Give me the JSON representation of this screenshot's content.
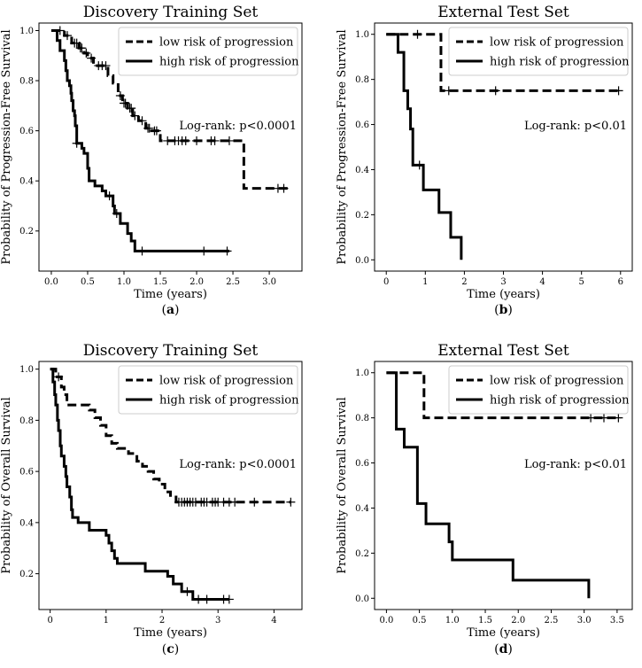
{
  "chart_data": [
    {
      "type": "line",
      "panel_label": "a",
      "title": "Discovery Training Set",
      "xlabel": "Time (years)",
      "ylabel": "Probability of Progression-Free Survival",
      "xlim": [
        -0.17,
        3.45
      ],
      "ylim": [
        0.04,
        1.03
      ],
      "xticks": [
        "0.0",
        "0.5",
        "1.0",
        "1.5",
        "2.0",
        "2.5",
        "3.0"
      ],
      "xtick_values": [
        0,
        0.5,
        1,
        1.5,
        2,
        2.5,
        3
      ],
      "yticks": [
        "0.2",
        "0.4",
        "0.6",
        "0.8",
        "1.0"
      ],
      "ytick_values": [
        0.2,
        0.4,
        0.6,
        0.8,
        1.0
      ],
      "annotation": "Log-rank: p<0.0001",
      "legend_position": "top-right",
      "series": [
        {
          "name": "low risk of progression",
          "style": "dashed",
          "steps": [
            [
              0,
              1.0
            ],
            [
              0.18,
              0.98
            ],
            [
              0.28,
              0.95
            ],
            [
              0.38,
              0.93
            ],
            [
              0.45,
              0.91
            ],
            [
              0.5,
              0.89
            ],
            [
              0.58,
              0.86
            ],
            [
              0.78,
              0.82
            ],
            [
              0.85,
              0.79
            ],
            [
              0.92,
              0.74
            ],
            [
              0.98,
              0.71
            ],
            [
              1.05,
              0.69
            ],
            [
              1.12,
              0.66
            ],
            [
              1.2,
              0.64
            ],
            [
              1.3,
              0.61
            ],
            [
              1.38,
              0.6
            ],
            [
              1.5,
              0.56
            ],
            [
              2.65,
              0.37
            ],
            [
              3.3,
              0.37
            ]
          ],
          "censored": [
            [
              0.12,
              1.0
            ],
            [
              0.22,
              0.98
            ],
            [
              0.32,
              0.95
            ],
            [
              0.35,
              0.95
            ],
            [
              0.4,
              0.93
            ],
            [
              0.42,
              0.93
            ],
            [
              0.48,
              0.91
            ],
            [
              0.55,
              0.89
            ],
            [
              0.65,
              0.86
            ],
            [
              0.7,
              0.86
            ],
            [
              0.75,
              0.86
            ],
            [
              0.95,
              0.74
            ],
            [
              1.0,
              0.71
            ],
            [
              1.02,
              0.71
            ],
            [
              1.08,
              0.69
            ],
            [
              1.1,
              0.69
            ],
            [
              1.15,
              0.66
            ],
            [
              1.25,
              0.64
            ],
            [
              1.33,
              0.61
            ],
            [
              1.35,
              0.61
            ],
            [
              1.42,
              0.6
            ],
            [
              1.45,
              0.6
            ],
            [
              1.6,
              0.56
            ],
            [
              1.7,
              0.56
            ],
            [
              1.75,
              0.56
            ],
            [
              1.8,
              0.56
            ],
            [
              1.85,
              0.56
            ],
            [
              2.0,
              0.56
            ],
            [
              2.2,
              0.56
            ],
            [
              2.25,
              0.56
            ],
            [
              2.45,
              0.56
            ],
            [
              3.12,
              0.37
            ],
            [
              3.2,
              0.37
            ]
          ]
        },
        {
          "name": "high risk of progression",
          "style": "solid",
          "steps": [
            [
              0,
              1.0
            ],
            [
              0.08,
              0.96
            ],
            [
              0.12,
              0.92
            ],
            [
              0.18,
              0.88
            ],
            [
              0.2,
              0.84
            ],
            [
              0.22,
              0.8
            ],
            [
              0.25,
              0.78
            ],
            [
              0.27,
              0.75
            ],
            [
              0.28,
              0.72
            ],
            [
              0.3,
              0.68
            ],
            [
              0.32,
              0.66
            ],
            [
              0.33,
              0.62
            ],
            [
              0.35,
              0.55
            ],
            [
              0.42,
              0.53
            ],
            [
              0.45,
              0.51
            ],
            [
              0.5,
              0.45
            ],
            [
              0.52,
              0.4
            ],
            [
              0.6,
              0.38
            ],
            [
              0.7,
              0.36
            ],
            [
              0.75,
              0.34
            ],
            [
              0.85,
              0.3
            ],
            [
              0.87,
              0.27
            ],
            [
              0.95,
              0.23
            ],
            [
              1.05,
              0.19
            ],
            [
              1.1,
              0.16
            ],
            [
              1.15,
              0.12
            ],
            [
              2.45,
              0.12
            ]
          ],
          "censored": [
            [
              0.35,
              0.55
            ],
            [
              0.8,
              0.34
            ],
            [
              0.9,
              0.27
            ],
            [
              1.25,
              0.12
            ],
            [
              2.1,
              0.12
            ],
            [
              2.42,
              0.12
            ]
          ]
        }
      ]
    },
    {
      "type": "line",
      "panel_label": "b",
      "title": "External Test Set",
      "xlabel": "Time (years)",
      "ylabel": "Probability of Progression-Free Survival",
      "xlim": [
        -0.3,
        6.3
      ],
      "ylim": [
        -0.05,
        1.05
      ],
      "xticks": [
        "0",
        "1",
        "2",
        "3",
        "4",
        "5",
        "6"
      ],
      "xtick_values": [
        0,
        1,
        2,
        3,
        4,
        5,
        6
      ],
      "yticks": [
        "0.0",
        "0.2",
        "0.4",
        "0.6",
        "0.8",
        "1.0"
      ],
      "ytick_values": [
        0,
        0.2,
        0.4,
        0.6,
        0.8,
        1.0
      ],
      "annotation": "Log-rank: p<0.01",
      "legend_position": "top-right",
      "series": [
        {
          "name": "low risk of progression",
          "style": "dashed",
          "steps": [
            [
              0,
              1.0
            ],
            [
              1.4,
              0.75
            ],
            [
              6.0,
              0.75
            ]
          ],
          "censored": [
            [
              0.8,
              1.0
            ],
            [
              1.6,
              0.75
            ],
            [
              2.8,
              0.75
            ],
            [
              5.95,
              0.75
            ]
          ]
        },
        {
          "name": "high risk of progression",
          "style": "solid",
          "steps": [
            [
              0,
              1.0
            ],
            [
              0.3,
              0.92
            ],
            [
              0.45,
              0.75
            ],
            [
              0.55,
              0.67
            ],
            [
              0.62,
              0.58
            ],
            [
              0.68,
              0.42
            ],
            [
              0.95,
              0.31
            ],
            [
              1.35,
              0.21
            ],
            [
              1.65,
              0.1
            ],
            [
              1.92,
              0.0
            ]
          ],
          "censored": [
            [
              0.85,
              0.42
            ]
          ]
        }
      ]
    },
    {
      "type": "line",
      "panel_label": "c",
      "title": "Discovery Training Set",
      "xlabel": "Time (years)",
      "ylabel": "Probability of Overall Survival",
      "xlim": [
        -0.2,
        4.5
      ],
      "ylim": [
        0.06,
        1.03
      ],
      "xticks": [
        "0",
        "1",
        "2",
        "3",
        "4"
      ],
      "xtick_values": [
        0,
        1,
        2,
        3,
        4
      ],
      "yticks": [
        "0.2",
        "0.4",
        "0.6",
        "0.8",
        "1.0"
      ],
      "ytick_values": [
        0.2,
        0.4,
        0.6,
        0.8,
        1.0
      ],
      "annotation": "Log-rank: p<0.0001",
      "legend_position": "top-right",
      "series": [
        {
          "name": "low risk of progression",
          "style": "dashed",
          "steps": [
            [
              0,
              1.0
            ],
            [
              0.1,
              0.97
            ],
            [
              0.2,
              0.93
            ],
            [
              0.25,
              0.9
            ],
            [
              0.3,
              0.86
            ],
            [
              0.7,
              0.84
            ],
            [
              0.8,
              0.81
            ],
            [
              0.9,
              0.78
            ],
            [
              1.0,
              0.74
            ],
            [
              1.1,
              0.71
            ],
            [
              1.2,
              0.69
            ],
            [
              1.4,
              0.67
            ],
            [
              1.55,
              0.64
            ],
            [
              1.65,
              0.62
            ],
            [
              1.75,
              0.6
            ],
            [
              1.85,
              0.57
            ],
            [
              1.95,
              0.55
            ],
            [
              2.05,
              0.52
            ],
            [
              2.15,
              0.5
            ],
            [
              2.25,
              0.48
            ],
            [
              4.3,
              0.48
            ]
          ],
          "censored": [
            [
              0.15,
              0.97
            ],
            [
              2.3,
              0.48
            ],
            [
              2.35,
              0.48
            ],
            [
              2.4,
              0.48
            ],
            [
              2.45,
              0.48
            ],
            [
              2.5,
              0.48
            ],
            [
              2.55,
              0.48
            ],
            [
              2.6,
              0.48
            ],
            [
              2.7,
              0.48
            ],
            [
              2.75,
              0.48
            ],
            [
              2.8,
              0.48
            ],
            [
              2.9,
              0.48
            ],
            [
              2.95,
              0.48
            ],
            [
              3.0,
              0.48
            ],
            [
              3.1,
              0.48
            ],
            [
              3.2,
              0.48
            ],
            [
              3.3,
              0.48
            ],
            [
              3.65,
              0.48
            ],
            [
              4.3,
              0.48
            ]
          ]
        },
        {
          "name": "high risk of progression",
          "style": "solid",
          "steps": [
            [
              0,
              1.0
            ],
            [
              0.05,
              0.95
            ],
            [
              0.08,
              0.9
            ],
            [
              0.1,
              0.86
            ],
            [
              0.13,
              0.8
            ],
            [
              0.15,
              0.76
            ],
            [
              0.18,
              0.7
            ],
            [
              0.2,
              0.66
            ],
            [
              0.25,
              0.62
            ],
            [
              0.28,
              0.58
            ],
            [
              0.3,
              0.54
            ],
            [
              0.35,
              0.5
            ],
            [
              0.38,
              0.45
            ],
            [
              0.4,
              0.42
            ],
            [
              0.5,
              0.4
            ],
            [
              0.7,
              0.37
            ],
            [
              1.0,
              0.35
            ],
            [
              1.05,
              0.32
            ],
            [
              1.1,
              0.29
            ],
            [
              1.15,
              0.26
            ],
            [
              1.2,
              0.24
            ],
            [
              1.7,
              0.21
            ],
            [
              2.1,
              0.19
            ],
            [
              2.2,
              0.16
            ],
            [
              2.35,
              0.13
            ],
            [
              2.55,
              0.1
            ],
            [
              3.2,
              0.1
            ]
          ],
          "censored": [
            [
              2.45,
              0.13
            ],
            [
              2.65,
              0.1
            ],
            [
              2.8,
              0.1
            ],
            [
              3.1,
              0.1
            ],
            [
              3.2,
              0.1
            ]
          ]
        }
      ]
    },
    {
      "type": "line",
      "panel_label": "d",
      "title": "External Test Set",
      "xlabel": "Time (years)",
      "ylabel": "Probability of Overall Survival",
      "xlim": [
        -0.18,
        3.73
      ],
      "ylim": [
        -0.05,
        1.05
      ],
      "xticks": [
        "0.0",
        "0.5",
        "1.0",
        "1.5",
        "2.0",
        "2.5",
        "3.0",
        "3.5"
      ],
      "xtick_values": [
        0,
        0.5,
        1,
        1.5,
        2,
        2.5,
        3,
        3.5
      ],
      "yticks": [
        "0.0",
        "0.2",
        "0.4",
        "0.6",
        "0.8",
        "1.0"
      ],
      "ytick_values": [
        0,
        0.2,
        0.4,
        0.6,
        0.8,
        1.0
      ],
      "annotation": "Log-rank: p<0.01",
      "legend_position": "top-right",
      "series": [
        {
          "name": "low risk of progression",
          "style": "dashed",
          "steps": [
            [
              0,
              1.0
            ],
            [
              0.57,
              0.8
            ],
            [
              3.55,
              0.8
            ]
          ],
          "censored": [
            [
              3.1,
              0.8
            ],
            [
              3.3,
              0.8
            ],
            [
              3.52,
              0.8
            ]
          ]
        },
        {
          "name": "high risk of progression",
          "style": "solid",
          "steps": [
            [
              0,
              1.0
            ],
            [
              0.15,
              0.75
            ],
            [
              0.27,
              0.67
            ],
            [
              0.47,
              0.42
            ],
            [
              0.6,
              0.33
            ],
            [
              0.95,
              0.25
            ],
            [
              1.0,
              0.17
            ],
            [
              1.92,
              0.08
            ],
            [
              3.07,
              0.0
            ]
          ],
          "censored": []
        }
      ]
    }
  ]
}
